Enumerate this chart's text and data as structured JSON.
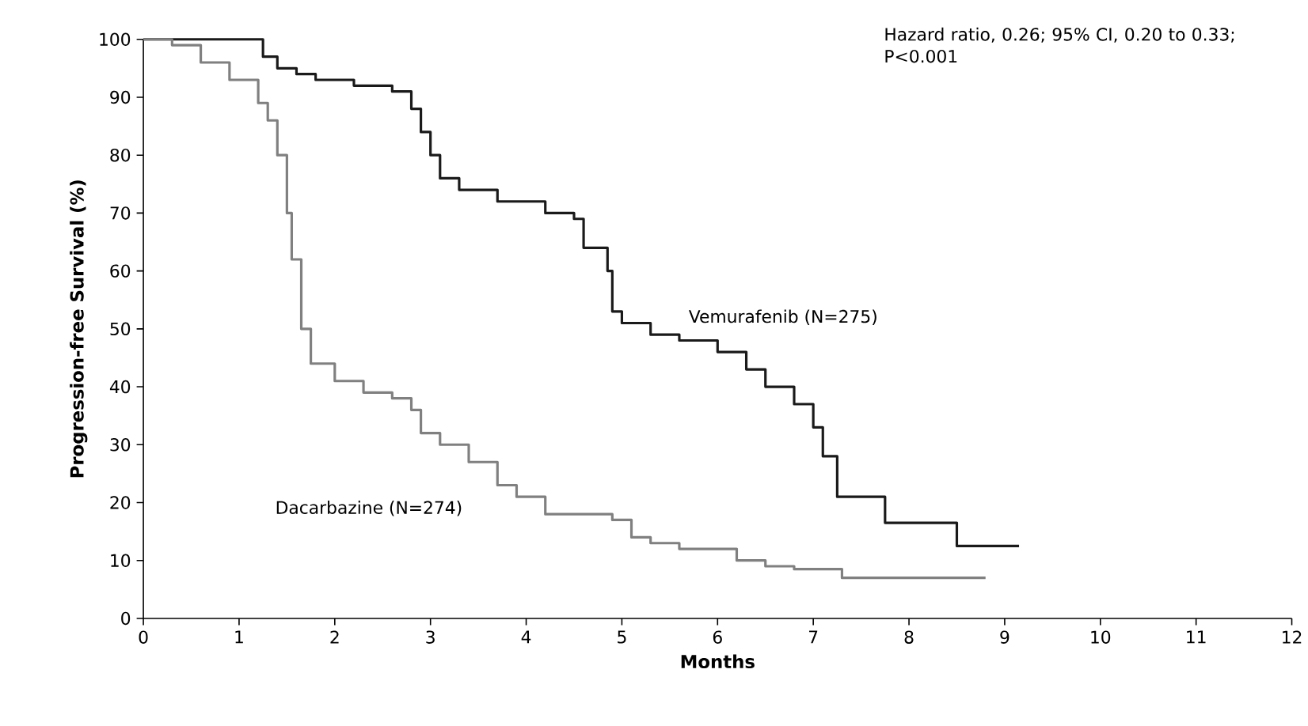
{
  "chart_data": {
    "type": "step",
    "xlabel": "Months",
    "ylabel": "Progression-free Survival (%)",
    "xlim": [
      0,
      12
    ],
    "ylim": [
      0,
      100
    ],
    "xticks": [
      0,
      1,
      2,
      3,
      4,
      5,
      6,
      7,
      8,
      9,
      10,
      11,
      12
    ],
    "yticks": [
      0,
      10,
      20,
      30,
      40,
      50,
      60,
      70,
      80,
      90,
      100
    ],
    "annotations": [
      "Hazard ratio, 0.26; 95%  CI, 0.20 to 0.33; P<0.001"
    ],
    "series": [
      {
        "name": "Vemurafenib (N=275)",
        "color": "#1a1a1a",
        "x": [
          0,
          1.25,
          1.4,
          1.6,
          1.8,
          2.2,
          2.6,
          2.8,
          2.9,
          3.0,
          3.1,
          3.3,
          3.7,
          4.2,
          4.5,
          4.6,
          4.85,
          4.9,
          5.0,
          5.3,
          5.6,
          6.0,
          6.3,
          6.5,
          6.8,
          7.0,
          7.1,
          7.25,
          7.75,
          8.5,
          9.15
        ],
        "values": [
          100,
          97,
          95,
          94,
          93,
          92,
          91,
          88,
          84,
          80,
          76,
          74,
          72,
          70,
          69,
          64,
          60,
          53,
          51,
          49,
          48,
          46,
          43,
          40,
          37,
          33,
          28,
          21,
          16.5,
          12.5,
          12.5
        ]
      },
      {
        "name": "Dacarbazine (N=274)",
        "color": "#808080",
        "x": [
          0,
          0.3,
          0.6,
          0.9,
          1.2,
          1.3,
          1.4,
          1.5,
          1.55,
          1.65,
          1.75,
          2.0,
          2.3,
          2.6,
          2.8,
          2.9,
          3.1,
          3.4,
          3.7,
          3.9,
          4.2,
          4.9,
          5.1,
          5.3,
          5.6,
          6.2,
          6.5,
          6.8,
          7.3,
          8.8
        ],
        "values": [
          100,
          99,
          96,
          93,
          89,
          86,
          80,
          70,
          62,
          50,
          44,
          41,
          39,
          38,
          36,
          32,
          30,
          27,
          23,
          21,
          18,
          17,
          14,
          13,
          12,
          10,
          9,
          8.5,
          7,
          7
        ]
      }
    ]
  }
}
